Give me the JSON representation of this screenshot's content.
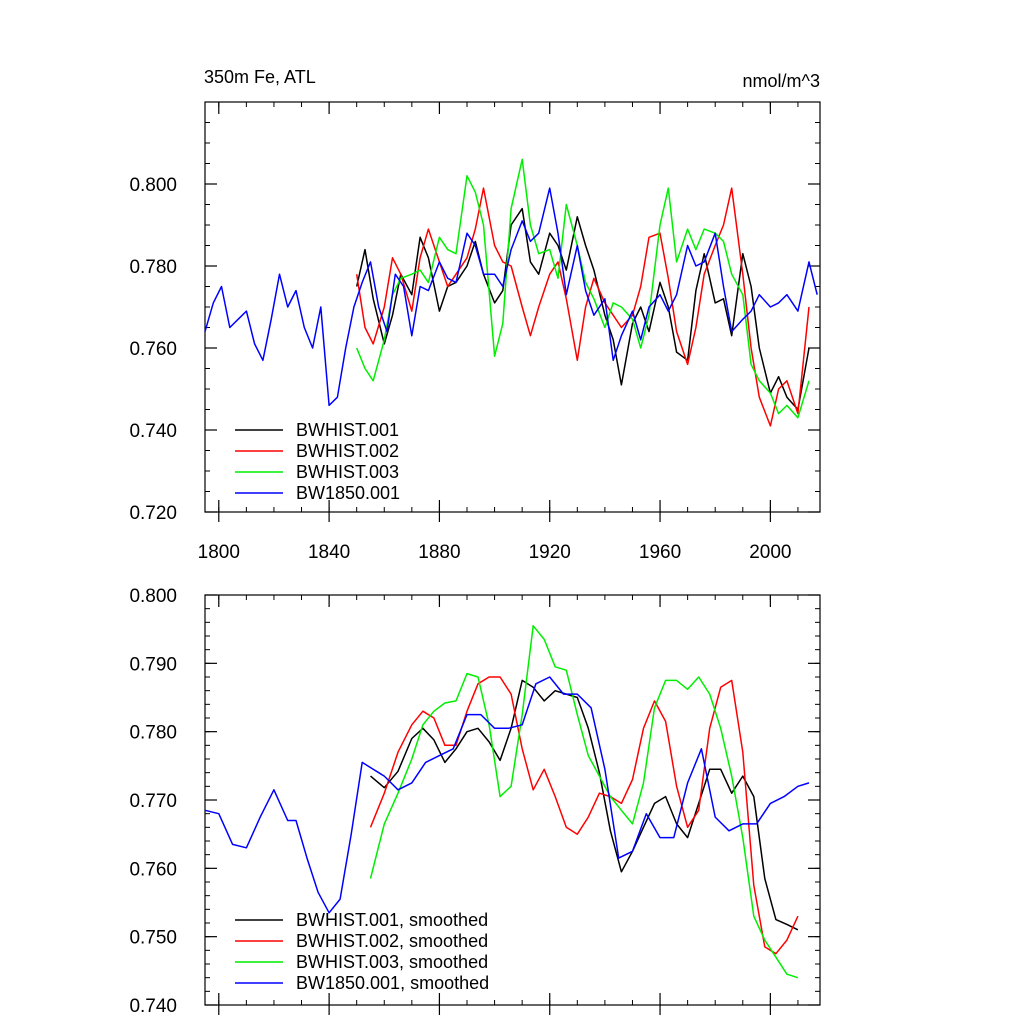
{
  "chart_data": [
    {
      "type": "line",
      "title": "350m Fe, ATL",
      "units": "nmol/m^3",
      "xlim": [
        1795,
        2018
      ],
      "ylim": [
        0.72,
        0.82
      ],
      "x_ticks": [
        1800,
        1840,
        1880,
        1920,
        1960,
        2000
      ],
      "x_tick_labels": [
        "1800",
        "1840",
        "1880",
        "1920",
        "1960",
        "2000"
      ],
      "y_ticks": [
        0.72,
        0.74,
        0.76,
        0.78,
        0.8
      ],
      "y_tick_labels": [
        "0.720",
        "0.740",
        "0.760",
        "0.780",
        "0.800"
      ],
      "legend": [
        "BWHIST.001",
        "BWHIST.002",
        "BWHIST.003",
        "BW1850.001"
      ],
      "legend_position": "bottom-left",
      "series": [
        {
          "name": "BWHIST.001",
          "color": "#000000",
          "x": [
            1850,
            1853,
            1856,
            1860,
            1863,
            1866,
            1870,
            1873,
            1876,
            1880,
            1883,
            1886,
            1890,
            1893,
            1896,
            1900,
            1903,
            1906,
            1910,
            1913,
            1916,
            1920,
            1923,
            1926,
            1930,
            1933,
            1936,
            1940,
            1943,
            1946,
            1950,
            1953,
            1956,
            1960,
            1963,
            1966,
            1970,
            1973,
            1976,
            1980,
            1983,
            1986,
            1990,
            1993,
            1996,
            2000,
            2003,
            2006,
            2010,
            2014
          ],
          "y": [
            0.775,
            0.784,
            0.772,
            0.761,
            0.768,
            0.778,
            0.773,
            0.787,
            0.782,
            0.769,
            0.775,
            0.776,
            0.78,
            0.786,
            0.778,
            0.771,
            0.774,
            0.79,
            0.794,
            0.781,
            0.778,
            0.788,
            0.785,
            0.779,
            0.792,
            0.785,
            0.779,
            0.768,
            0.762,
            0.751,
            0.766,
            0.77,
            0.764,
            0.776,
            0.77,
            0.759,
            0.757,
            0.774,
            0.783,
            0.771,
            0.772,
            0.763,
            0.783,
            0.775,
            0.76,
            0.749,
            0.753,
            0.748,
            0.745,
            0.76
          ]
        },
        {
          "name": "BWHIST.002",
          "color": "#ff0000",
          "x": [
            1850,
            1853,
            1856,
            1860,
            1863,
            1866,
            1870,
            1873,
            1876,
            1880,
            1883,
            1886,
            1890,
            1893,
            1896,
            1900,
            1903,
            1906,
            1910,
            1913,
            1916,
            1920,
            1923,
            1926,
            1930,
            1933,
            1936,
            1940,
            1943,
            1946,
            1950,
            1953,
            1956,
            1960,
            1963,
            1966,
            1970,
            1973,
            1976,
            1980,
            1983,
            1986,
            1990,
            1993,
            1996,
            2000,
            2003,
            2006,
            2010,
            2014
          ],
          "y": [
            0.778,
            0.765,
            0.761,
            0.77,
            0.782,
            0.778,
            0.769,
            0.782,
            0.789,
            0.781,
            0.775,
            0.778,
            0.782,
            0.789,
            0.799,
            0.785,
            0.781,
            0.78,
            0.77,
            0.763,
            0.77,
            0.778,
            0.781,
            0.772,
            0.757,
            0.77,
            0.777,
            0.771,
            0.768,
            0.765,
            0.768,
            0.775,
            0.787,
            0.788,
            0.777,
            0.764,
            0.756,
            0.765,
            0.778,
            0.785,
            0.79,
            0.799,
            0.778,
            0.76,
            0.748,
            0.741,
            0.75,
            0.752,
            0.744,
            0.77
          ]
        },
        {
          "name": "BWHIST.003",
          "color": "#00ee00",
          "x": [
            1850,
            1853,
            1856,
            1860,
            1863,
            1866,
            1870,
            1873,
            1876,
            1880,
            1883,
            1886,
            1890,
            1893,
            1896,
            1900,
            1903,
            1906,
            1910,
            1913,
            1916,
            1920,
            1923,
            1926,
            1930,
            1933,
            1936,
            1940,
            1943,
            1946,
            1950,
            1953,
            1956,
            1960,
            1963,
            1966,
            1970,
            1973,
            1976,
            1980,
            1983,
            1986,
            1990,
            1993,
            1996,
            2000,
            2003,
            2006,
            2010,
            2014
          ],
          "y": [
            0.76,
            0.755,
            0.752,
            0.762,
            0.773,
            0.777,
            0.778,
            0.779,
            0.776,
            0.787,
            0.784,
            0.783,
            0.802,
            0.798,
            0.79,
            0.758,
            0.766,
            0.794,
            0.806,
            0.79,
            0.783,
            0.784,
            0.777,
            0.795,
            0.785,
            0.776,
            0.772,
            0.765,
            0.771,
            0.77,
            0.767,
            0.76,
            0.768,
            0.79,
            0.799,
            0.781,
            0.789,
            0.784,
            0.789,
            0.788,
            0.786,
            0.778,
            0.773,
            0.756,
            0.752,
            0.749,
            0.744,
            0.746,
            0.743,
            0.752
          ]
        },
        {
          "name": "BW1850.001",
          "color": "#0000ff",
          "x": [
            1795,
            1798,
            1801,
            1804,
            1807,
            1810,
            1813,
            1816,
            1819,
            1822,
            1825,
            1828,
            1831,
            1834,
            1837,
            1840,
            1843,
            1846,
            1849,
            1852,
            1855,
            1858,
            1861,
            1864,
            1867,
            1870,
            1873,
            1876,
            1880,
            1883,
            1886,
            1890,
            1893,
            1896,
            1900,
            1903,
            1906,
            1910,
            1913,
            1916,
            1920,
            1923,
            1926,
            1930,
            1933,
            1936,
            1940,
            1943,
            1946,
            1950,
            1953,
            1956,
            1960,
            1963,
            1966,
            1970,
            1973,
            1976,
            1980,
            1983,
            1986,
            1990,
            1993,
            1996,
            2000,
            2003,
            2006,
            2010,
            2014,
            2017
          ],
          "y": [
            0.764,
            0.771,
            0.775,
            0.765,
            0.767,
            0.769,
            0.761,
            0.757,
            0.767,
            0.778,
            0.77,
            0.774,
            0.765,
            0.76,
            0.77,
            0.746,
            0.748,
            0.76,
            0.77,
            0.776,
            0.781,
            0.77,
            0.764,
            0.778,
            0.775,
            0.763,
            0.775,
            0.774,
            0.781,
            0.777,
            0.776,
            0.788,
            0.785,
            0.778,
            0.778,
            0.775,
            0.784,
            0.791,
            0.786,
            0.788,
            0.799,
            0.788,
            0.773,
            0.785,
            0.774,
            0.768,
            0.772,
            0.757,
            0.763,
            0.769,
            0.762,
            0.77,
            0.773,
            0.769,
            0.773,
            0.785,
            0.78,
            0.781,
            0.788,
            0.775,
            0.764,
            0.767,
            0.769,
            0.773,
            0.77,
            0.771,
            0.773,
            0.769,
            0.781,
            0.773
          ]
        }
      ]
    },
    {
      "type": "line",
      "title": "",
      "xlim": [
        1795,
        2018
      ],
      "ylim": [
        0.74,
        0.8
      ],
      "y_ticks": [
        0.74,
        0.75,
        0.76,
        0.77,
        0.78,
        0.79,
        0.8
      ],
      "y_tick_labels": [
        "0.740",
        "0.750",
        "0.760",
        "0.770",
        "0.780",
        "0.790",
        "0.800"
      ],
      "x_ticks": [
        1800,
        1840,
        1880,
        1920,
        1960,
        2000
      ],
      "legend": [
        "BWHIST.001, smoothed",
        "BWHIST.002, smoothed",
        "BWHIST.003, smoothed",
        "BW1850.001, smoothed"
      ],
      "legend_position": "bottom-left",
      "series": [
        {
          "name": "BWHIST.001, smoothed",
          "color": "#000000",
          "x": [
            1855,
            1860,
            1865,
            1870,
            1874,
            1878,
            1882,
            1886,
            1890,
            1894,
            1898,
            1902,
            1906,
            1910,
            1914,
            1918,
            1922,
            1926,
            1930,
            1934,
            1938,
            1942,
            1946,
            1950,
            1954,
            1958,
            1962,
            1966,
            1970,
            1974,
            1978,
            1982,
            1986,
            1990,
            1994,
            1998,
            2002,
            2006,
            2010
          ],
          "y": [
            0.7735,
            0.7718,
            0.7742,
            0.779,
            0.7805,
            0.7788,
            0.7755,
            0.7775,
            0.78,
            0.7805,
            0.7785,
            0.7758,
            0.7805,
            0.7875,
            0.7865,
            0.7845,
            0.786,
            0.7855,
            0.785,
            0.7805,
            0.774,
            0.7655,
            0.7595,
            0.7625,
            0.766,
            0.7695,
            0.7705,
            0.7665,
            0.7645,
            0.7695,
            0.7745,
            0.7745,
            0.771,
            0.7735,
            0.7705,
            0.7585,
            0.7525,
            0.7518,
            0.751
          ]
        },
        {
          "name": "BWHIST.002, smoothed",
          "color": "#ff0000",
          "x": [
            1855,
            1860,
            1865,
            1870,
            1874,
            1878,
            1882,
            1886,
            1890,
            1894,
            1898,
            1902,
            1906,
            1910,
            1914,
            1918,
            1922,
            1926,
            1930,
            1934,
            1938,
            1942,
            1946,
            1950,
            1954,
            1958,
            1962,
            1966,
            1970,
            1974,
            1978,
            1982,
            1986,
            1990,
            1994,
            1998,
            2002,
            2006,
            2010
          ],
          "y": [
            0.766,
            0.771,
            0.777,
            0.781,
            0.783,
            0.782,
            0.778,
            0.778,
            0.783,
            0.787,
            0.788,
            0.788,
            0.7855,
            0.7775,
            0.7715,
            0.7745,
            0.7705,
            0.766,
            0.765,
            0.7675,
            0.771,
            0.7705,
            0.7695,
            0.773,
            0.7805,
            0.7845,
            0.7815,
            0.772,
            0.766,
            0.7685,
            0.7805,
            0.7865,
            0.7875,
            0.777,
            0.7575,
            0.7485,
            0.7475,
            0.7495,
            0.753
          ]
        },
        {
          "name": "BWHIST.003, smoothed",
          "color": "#00ee00",
          "x": [
            1855,
            1860,
            1865,
            1870,
            1874,
            1878,
            1882,
            1886,
            1890,
            1894,
            1898,
            1902,
            1906,
            1910,
            1914,
            1918,
            1922,
            1926,
            1930,
            1934,
            1938,
            1942,
            1946,
            1950,
            1954,
            1958,
            1962,
            1966,
            1970,
            1974,
            1978,
            1982,
            1986,
            1990,
            1994,
            1998,
            2002,
            2006,
            2010
          ],
          "y": [
            0.7585,
            0.7665,
            0.771,
            0.776,
            0.781,
            0.783,
            0.7842,
            0.7845,
            0.7885,
            0.788,
            0.781,
            0.7705,
            0.772,
            0.7825,
            0.7955,
            0.7935,
            0.7895,
            0.789,
            0.7825,
            0.7765,
            0.7735,
            0.7705,
            0.7685,
            0.7665,
            0.7725,
            0.7835,
            0.7875,
            0.7875,
            0.7862,
            0.788,
            0.7855,
            0.7805,
            0.7735,
            0.7645,
            0.753,
            0.7495,
            0.747,
            0.7445,
            0.744
          ]
        },
        {
          "name": "BW1850.001, smoothed",
          "color": "#0000ff",
          "x": [
            1795,
            1800,
            1805,
            1810,
            1815,
            1820,
            1825,
            1828,
            1832,
            1836,
            1840,
            1844,
            1848,
            1852,
            1856,
            1860,
            1865,
            1870,
            1875,
            1880,
            1885,
            1890,
            1895,
            1900,
            1905,
            1910,
            1915,
            1920,
            1925,
            1930,
            1935,
            1940,
            1945,
            1950,
            1955,
            1960,
            1965,
            1970,
            1975,
            1980,
            1985,
            1990,
            1995,
            2000,
            2005,
            2010,
            2014
          ],
          "y": [
            0.7685,
            0.768,
            0.7635,
            0.763,
            0.7675,
            0.7715,
            0.767,
            0.767,
            0.7615,
            0.7565,
            0.7535,
            0.7555,
            0.765,
            0.7755,
            0.7745,
            0.7735,
            0.7715,
            0.7725,
            0.7755,
            0.7765,
            0.7775,
            0.7825,
            0.7825,
            0.7805,
            0.7805,
            0.781,
            0.787,
            0.788,
            0.7855,
            0.7855,
            0.7835,
            0.7745,
            0.7615,
            0.7625,
            0.768,
            0.7645,
            0.7645,
            0.7725,
            0.7775,
            0.7675,
            0.7655,
            0.7665,
            0.7665,
            0.7695,
            0.7705,
            0.772,
            0.7725
          ]
        }
      ]
    }
  ]
}
